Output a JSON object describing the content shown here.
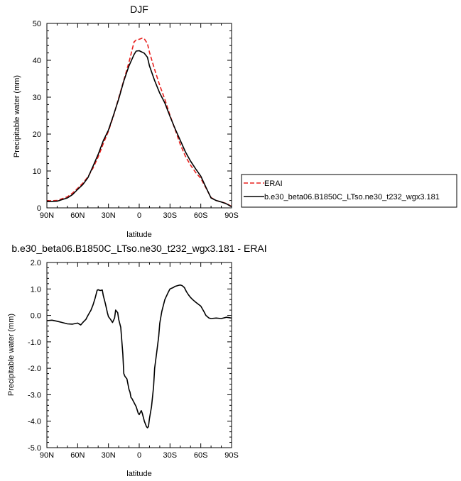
{
  "chart_data": [
    {
      "type": "line",
      "title": "DJF",
      "xlabel": "latitude",
      "ylabel": "Precipitable water (mm)",
      "xlim": [
        90,
        -90
      ],
      "ylim": [
        0,
        50
      ],
      "x_ticks": [
        90,
        60,
        30,
        0,
        -30,
        -60,
        -90
      ],
      "x_tick_labels": [
        "90N",
        "60N",
        "30N",
        "0",
        "30S",
        "60S",
        "90S"
      ],
      "y_ticks": [
        0,
        10,
        20,
        30,
        40,
        50
      ],
      "y_tick_labels": [
        "0",
        "10",
        "20",
        "30",
        "40",
        "50"
      ],
      "legend": {
        "position": "right",
        "entries": [
          "ERAI",
          "b.e30_beta06.B1850C_LTso.ne30_t232_wgx3.181"
        ]
      },
      "series": [
        {
          "name": "ERAI",
          "color": "#e8201e",
          "dash": "dashed",
          "x": [
            90,
            80,
            70,
            65,
            60,
            55,
            50,
            45,
            40,
            35,
            30,
            25,
            20,
            15,
            10,
            5,
            3,
            0,
            -3,
            -5,
            -8,
            -10,
            -15,
            -20,
            -25,
            -30,
            -35,
            -40,
            -45,
            -50,
            -55,
            -60,
            -65,
            -70,
            -75,
            -80,
            -85,
            -90
          ],
          "y": [
            1.9,
            2.0,
            3.0,
            4.0,
            5.3,
            6.7,
            8.4,
            10.8,
            13.8,
            17.4,
            20.8,
            25.0,
            29.8,
            34.6,
            39.5,
            45.0,
            45.5,
            45.7,
            46.0,
            45.8,
            44.5,
            42.2,
            37.5,
            33.2,
            29.4,
            25.1,
            21.2,
            17.2,
            14.0,
            11.6,
            9.6,
            8.0,
            5.4,
            2.8,
            2.0,
            1.6,
            1.2,
            0.4
          ]
        },
        {
          "name": "b.e30_beta06.B1850C_LTso.ne30_t232_wgx3.181",
          "color": "#000000",
          "dash": "solid",
          "x": [
            90,
            80,
            70,
            65,
            60,
            55,
            50,
            45,
            40,
            35,
            30,
            25,
            20,
            15,
            10,
            5,
            3,
            0,
            -3,
            -5,
            -8,
            -10,
            -15,
            -20,
            -25,
            -30,
            -35,
            -40,
            -45,
            -50,
            -55,
            -60,
            -65,
            -70,
            -75,
            -80,
            -85,
            -90
          ],
          "y": [
            1.7,
            1.8,
            2.7,
            3.6,
            5.0,
            6.3,
            8.2,
            11.3,
            14.5,
            18.2,
            21.1,
            25.2,
            29.5,
            34.4,
            38.5,
            41.6,
            42.5,
            42.6,
            42.2,
            41.9,
            40.8,
            38.5,
            34.5,
            31.1,
            28.4,
            24.8,
            21.4,
            18.3,
            15.2,
            12.7,
            10.6,
            8.6,
            5.6,
            2.7,
            2.0,
            1.6,
            1.1,
            0.3
          ]
        }
      ]
    },
    {
      "type": "line",
      "title": "b.e30_beta06.B1850C_LTso.ne30_t232_wgx3.181 - ERAI",
      "xlabel": "latitude",
      "ylabel": "Precipitable water (mm)",
      "xlim": [
        90,
        -90
      ],
      "ylim": [
        -5,
        2
      ],
      "x_ticks": [
        90,
        60,
        30,
        0,
        -30,
        -60,
        -90
      ],
      "x_tick_labels": [
        "90N",
        "60N",
        "30N",
        "0",
        "30S",
        "60S",
        "90S"
      ],
      "y_ticks": [
        2,
        1,
        0,
        -1,
        -2,
        -3,
        -4,
        -5
      ],
      "y_tick_labels": [
        "2.0",
        "1.0",
        "0.0",
        "-1.0",
        "-2.0",
        "-3.0",
        "-4.0",
        "-5.0"
      ],
      "series": [
        {
          "color": "#000000",
          "dash": "solid",
          "x": [
            90,
            85,
            80,
            75,
            70,
            65,
            60,
            57,
            55,
            52,
            50,
            47,
            45,
            43,
            41,
            40,
            38,
            36,
            35,
            33,
            31,
            30,
            28,
            26,
            24,
            23,
            21,
            20,
            18,
            16,
            15,
            14,
            12,
            10,
            9,
            8,
            7,
            5,
            3,
            1,
            0,
            -2,
            -3,
            -5,
            -7,
            -8,
            -9,
            -10,
            -12,
            -14,
            -15,
            -17,
            -19,
            -20,
            -22,
            -25,
            -28,
            -30,
            -33,
            -35,
            -38,
            -40,
            -42,
            -44,
            -46,
            -48,
            -50,
            -52,
            -55,
            -60,
            -63,
            -65,
            -68,
            -70,
            -75,
            -80,
            -85,
            -90
          ],
          "y": [
            -0.2,
            -0.18,
            -0.22,
            -0.27,
            -0.32,
            -0.33,
            -0.29,
            -0.36,
            -0.27,
            -0.15,
            0.0,
            0.2,
            0.4,
            0.65,
            0.95,
            0.97,
            0.94,
            0.96,
            0.75,
            0.45,
            0.1,
            -0.05,
            -0.15,
            -0.27,
            -0.1,
            0.2,
            0.1,
            -0.15,
            -0.45,
            -1.45,
            -2.2,
            -2.3,
            -2.4,
            -2.8,
            -2.9,
            -3.1,
            -3.15,
            -3.3,
            -3.45,
            -3.7,
            -3.75,
            -3.6,
            -3.7,
            -4.0,
            -4.2,
            -4.25,
            -4.2,
            -3.9,
            -3.45,
            -2.7,
            -2.0,
            -1.4,
            -0.8,
            -0.3,
            0.15,
            0.6,
            0.85,
            1.0,
            1.05,
            1.1,
            1.13,
            1.15,
            1.12,
            1.05,
            0.9,
            0.78,
            0.68,
            0.6,
            0.5,
            0.35,
            0.15,
            0.0,
            -0.1,
            -0.12,
            -0.1,
            -0.12,
            -0.07,
            -0.1
          ]
        }
      ]
    }
  ]
}
